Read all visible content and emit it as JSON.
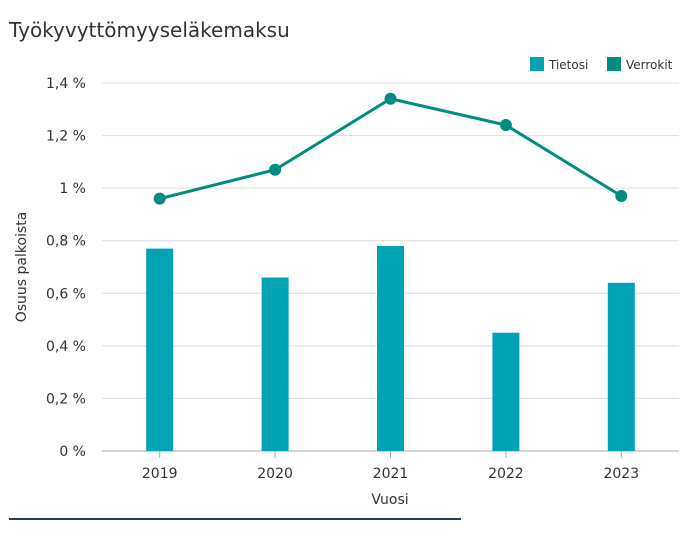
{
  "chart_data": {
    "type": "bar",
    "title": "Työkyvyttömyyseläkemaksu",
    "xlabel": "Vuosi",
    "ylabel": "Osuus palkoista",
    "categories": [
      "2019",
      "2020",
      "2021",
      "2022",
      "2023"
    ],
    "series": [
      {
        "name": "Tietosi",
        "type": "bar",
        "color": "#00a3b4",
        "values": [
          0.77,
          0.66,
          0.78,
          0.45,
          0.64
        ]
      },
      {
        "name": "Verrokit",
        "type": "line",
        "color": "#008c7e",
        "values": [
          0.96,
          1.07,
          1.34,
          1.24,
          0.97
        ]
      }
    ],
    "ylim": [
      0,
      1.4
    ],
    "yticks": [
      0,
      0.2,
      0.4,
      0.6,
      0.8,
      1,
      1.2,
      1.4
    ],
    "ytick_labels": [
      "0 %",
      "0,2 %",
      "0,4 %",
      "0,6 %",
      "0,8 %",
      "1 %",
      "1,2 %",
      "1,4 %"
    ],
    "grid": true,
    "legend_position": "top-right"
  }
}
